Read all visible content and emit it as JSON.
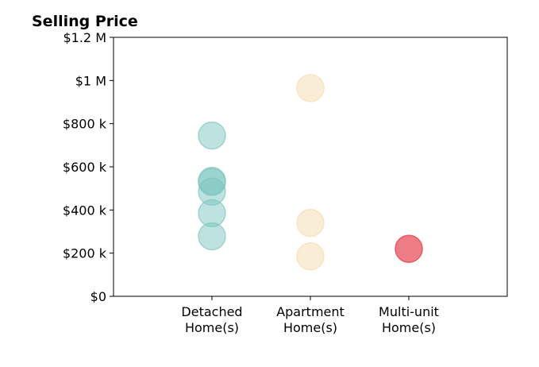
{
  "chart_data": {
    "type": "scatter",
    "title": "Selling Price",
    "xlabel": "",
    "ylabel": "",
    "categories": [
      [
        "Detached",
        "Home(s)"
      ],
      [
        "Apartment",
        "Home(s)"
      ],
      [
        "Multi-unit",
        "Home(s)"
      ]
    ],
    "xlim": [
      0,
      4
    ],
    "ylim": [
      0,
      1200000
    ],
    "y_ticks": [
      {
        "value": 0,
        "label": "$0"
      },
      {
        "value": 200000,
        "label": "$200 k"
      },
      {
        "value": 400000,
        "label": "$400 k"
      },
      {
        "value": 600000,
        "label": "$600 k"
      },
      {
        "value": 800000,
        "label": "$800 k"
      },
      {
        "value": 1000000,
        "label": "$1 M"
      },
      {
        "value": 1200000,
        "label": "$1.2 M"
      }
    ],
    "grid": false,
    "series": [
      {
        "category_index": 0,
        "color": "#7cc5bf",
        "values": [
          745000,
          535000,
          530000,
          485000,
          385000,
          278000
        ]
      },
      {
        "category_index": 1,
        "color": "#f5deb3",
        "values": [
          965000,
          340000,
          185000
        ]
      },
      {
        "category_index": 2,
        "color": "#e8505b",
        "values": [
          220000
        ]
      }
    ],
    "marker_opacity": [
      0.5,
      0.55,
      0.75
    ]
  }
}
